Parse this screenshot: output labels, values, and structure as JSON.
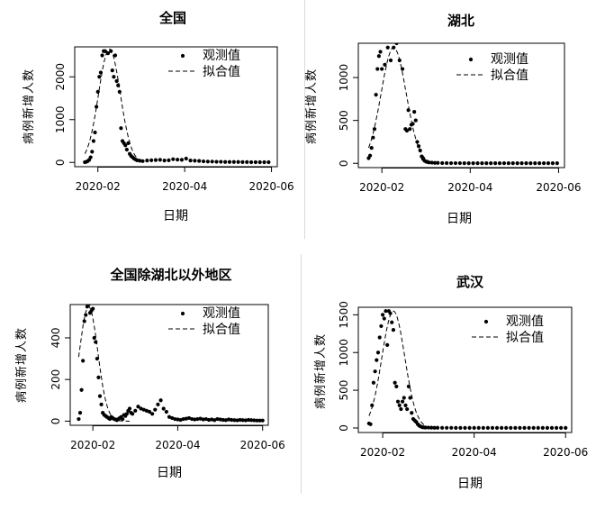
{
  "chart_data": [
    {
      "type": "scatter",
      "title": "全国",
      "xlabel": "日期",
      "ylabel": "病例新增人数",
      "x_ticks": [
        "2020-02",
        "2020-04",
        "2020-06"
      ],
      "y_ticks": [
        0,
        1000,
        2000
      ],
      "xlim": [
        -12,
        128
      ],
      "ylim": [
        -100,
        2700
      ],
      "legend": "top-right",
      "series": [
        {
          "name": "观测值",
          "style": "points",
          "x": [
            -5,
            -4,
            -3,
            -2,
            -1,
            0,
            1,
            2,
            3,
            4,
            5,
            6,
            7,
            8,
            9,
            11,
            13,
            14,
            15,
            16,
            17,
            18,
            19,
            20,
            21,
            22,
            23,
            24,
            25,
            26,
            27,
            28,
            29,
            30,
            31,
            33,
            35,
            38,
            41,
            44,
            47,
            50,
            53,
            56,
            59,
            62,
            65,
            68,
            71,
            74,
            77,
            80,
            83,
            86,
            89,
            92,
            95,
            98,
            101,
            104,
            107,
            110,
            113,
            116,
            119,
            122
          ],
          "y": [
            5,
            15,
            30,
            60,
            120,
            250,
            500,
            700,
            1300,
            1650,
            2000,
            2100,
            2500,
            2600,
            2600,
            2550,
            2600,
            2150,
            2000,
            2500,
            1900,
            1800,
            1650,
            800,
            500,
            450,
            400,
            300,
            450,
            200,
            150,
            120,
            90,
            70,
            50,
            40,
            30,
            45,
            50,
            55,
            60,
            45,
            50,
            75,
            65,
            60,
            90,
            45,
            40,
            35,
            25,
            20,
            20,
            15,
            15,
            10,
            10,
            10,
            10,
            8,
            8,
            5,
            5,
            5,
            5,
            5
          ]
        },
        {
          "name": "拟合值",
          "style": "dashed",
          "peak_x": 12,
          "peak_y": 2650,
          "sigma": 7.5,
          "x_from": -5,
          "x_to": 35
        }
      ]
    },
    {
      "type": "scatter",
      "title": "湖北",
      "xlabel": "日期",
      "ylabel": "病例新增人数",
      "x_ticks": [
        "2020-02",
        "2020-04",
        "2020-06"
      ],
      "y_ticks": [
        0,
        500,
        1000
      ],
      "xlim": [
        -12,
        128
      ],
      "ylim": [
        -50,
        1400
      ],
      "legend": "top-right",
      "series": [
        {
          "name": "观测值",
          "style": "points",
          "x": [
            -5,
            -4,
            -3,
            -2,
            -1,
            0,
            1,
            2,
            3,
            4,
            6,
            8,
            10,
            12,
            14,
            16,
            18,
            20,
            21,
            22,
            23,
            24,
            25,
            26,
            27,
            28,
            29,
            30,
            31,
            32,
            33,
            34,
            35,
            36,
            38,
            40,
            42,
            45,
            48,
            51,
            54,
            57,
            60,
            63,
            66,
            69,
            72,
            75,
            78,
            81,
            84,
            87,
            90,
            93,
            96,
            99,
            102,
            105,
            108,
            111,
            114,
            117,
            120,
            123
          ],
          "y": [
            60,
            90,
            180,
            300,
            400,
            800,
            1100,
            1250,
            1300,
            1100,
            1150,
            1350,
            1200,
            1350,
            1400,
            1200,
            1100,
            400,
            380,
            620,
            400,
            450,
            460,
            600,
            500,
            250,
            200,
            150,
            80,
            50,
            30,
            20,
            15,
            10,
            8,
            5,
            5,
            3,
            3,
            2,
            2,
            2,
            1,
            1,
            1,
            1,
            1,
            1,
            1,
            1,
            1,
            1,
            1,
            1,
            1,
            1,
            1,
            1,
            1,
            1,
            1,
            1,
            1,
            1
          ]
        },
        {
          "name": "拟合值",
          "style": "dashed",
          "peak_x": 12,
          "peak_y": 1350,
          "sigma": 8.5,
          "x_from": -5,
          "x_to": 45
        }
      ]
    },
    {
      "type": "scatter",
      "title": "全国除湖北以外地区",
      "xlabel": "日期",
      "ylabel": "病例新增人数",
      "x_ticks": [
        "2020-02",
        "2020-04",
        "2020-06"
      ],
      "y_ticks": [
        0,
        200,
        400
      ],
      "xlim": [
        -12,
        128
      ],
      "ylim": [
        -20,
        560
      ],
      "legend": "top-right",
      "series": [
        {
          "name": "观测值",
          "style": "points",
          "x": [
            -6,
            -5,
            -4,
            -3,
            -2,
            -1,
            0,
            1,
            2,
            3,
            4,
            5,
            6,
            7,
            8,
            9,
            10,
            11,
            12,
            13,
            14,
            15,
            16,
            17,
            18,
            19,
            20,
            21,
            22,
            23,
            24,
            25,
            26,
            27,
            28,
            29,
            30,
            31,
            32,
            34,
            36,
            38,
            40,
            42,
            44,
            46,
            48,
            50,
            52,
            54,
            56,
            58,
            60,
            62,
            64,
            66,
            68,
            70,
            72,
            74,
            76,
            78,
            80,
            82,
            84,
            86,
            88,
            90,
            92,
            94,
            96,
            98,
            100,
            102,
            104,
            106,
            108,
            110,
            112,
            114,
            116,
            118,
            120,
            122,
            124
          ],
          "y": [
            10,
            40,
            150,
            290,
            480,
            510,
            550,
            560,
            520,
            530,
            540,
            400,
            380,
            300,
            210,
            120,
            80,
            40,
            30,
            25,
            20,
            15,
            10,
            20,
            15,
            10,
            8,
            5,
            10,
            15,
            20,
            10,
            30,
            25,
            35,
            50,
            60,
            40,
            35,
            50,
            70,
            60,
            55,
            50,
            45,
            35,
            55,
            80,
            100,
            60,
            45,
            20,
            15,
            10,
            8,
            6,
            10,
            12,
            15,
            10,
            8,
            10,
            12,
            8,
            10,
            6,
            8,
            5,
            10,
            8,
            6,
            5,
            8,
            6,
            5,
            4,
            6,
            5,
            4,
            6,
            5,
            4,
            3,
            3,
            3
          ],
          "labels_x": [],
          "extra": []
        },
        {
          "name": "拟合值",
          "style": "dashed",
          "peak_x": 1,
          "peak_y": 550,
          "sigma": 6.5,
          "x_from": -6,
          "x_to": 30,
          "tail_y": 0
        }
      ]
    },
    {
      "type": "scatter",
      "title": "武汉",
      "xlabel": "日期",
      "ylabel": "病例新增人数",
      "x_ticks": [
        "2020-02",
        "2020-04",
        "2020-06"
      ],
      "y_ticks": [
        0,
        500,
        1000,
        1500
      ],
      "xlim": [
        -12,
        128
      ],
      "ylim": [
        -60,
        1600
      ],
      "legend": "top-right",
      "series": [
        {
          "name": "观测值",
          "style": "points",
          "x": [
            -5,
            -4,
            -3,
            -2,
            -1,
            0,
            1,
            2,
            3,
            4,
            5,
            6,
            7,
            8,
            9,
            10,
            11,
            12,
            13,
            14,
            15,
            16,
            17,
            18,
            19,
            20,
            21,
            22,
            23,
            24,
            25,
            26,
            27,
            28,
            29,
            30,
            31,
            32,
            34,
            36,
            38,
            40,
            43,
            46,
            49,
            52,
            55,
            58,
            61,
            64,
            67,
            70,
            73,
            76,
            79,
            82,
            85,
            88,
            91,
            94,
            97,
            100,
            103,
            106,
            109,
            112,
            115,
            118,
            121,
            124
          ],
          "y": [
            60,
            50,
            300,
            600,
            750,
            900,
            1000,
            1200,
            1350,
            1500,
            1450,
            1550,
            1100,
            1550,
            1520,
            1400,
            1300,
            600,
            550,
            350,
            300,
            250,
            350,
            400,
            300,
            250,
            550,
            400,
            200,
            120,
            100,
            80,
            50,
            30,
            20,
            10,
            8,
            6,
            5,
            4,
            3,
            3,
            2,
            2,
            2,
            1,
            1,
            1,
            1,
            1,
            1,
            1,
            1,
            1,
            1,
            1,
            1,
            1,
            1,
            1,
            1,
            1,
            1,
            1,
            1,
            1,
            1,
            1,
            1,
            1
          ]
        },
        {
          "name": "拟合值",
          "style": "dashed",
          "peak_x": 11,
          "peak_y": 1550,
          "sigma": 7.5,
          "x_from": -5,
          "x_to": 40
        }
      ]
    }
  ]
}
